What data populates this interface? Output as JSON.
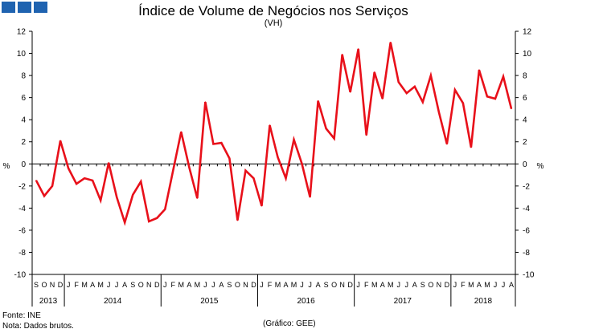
{
  "chart_data": {
    "type": "line",
    "title": "Índice de Volume de Negócios nos Serviços",
    "subtitle": "(VH)",
    "ylabel_left": "%",
    "ylabel_right": "%",
    "ylim": [
      -10,
      12
    ],
    "yticks": [
      -10,
      -8,
      -6,
      -4,
      -2,
      0,
      2,
      4,
      6,
      8,
      10,
      12
    ],
    "grid": false,
    "series": [
      {
        "name": "Índice de Volume de Negócios nos Serviços (VH)",
        "color": "#e8101a",
        "values": [
          -1.5,
          -2.9,
          -2.0,
          2.1,
          -0.4,
          -1.8,
          -1.3,
          -1.5,
          -3.3,
          0.1,
          -3.0,
          -5.3,
          -2.8,
          -1.6,
          -5.2,
          -4.9,
          -4.1,
          -0.6,
          2.9,
          -0.3,
          -3.1,
          5.6,
          1.8,
          1.9,
          0.5,
          -5.1,
          -0.6,
          -1.3,
          -3.8,
          3.5,
          0.6,
          -1.3,
          2.2,
          0.0,
          -3.0,
          5.7,
          3.2,
          2.3,
          9.9,
          6.5,
          10.4,
          2.6,
          8.3,
          5.9,
          11.0,
          7.4,
          6.4,
          7.0,
          5.6,
          8.0,
          4.7,
          1.8,
          6.7,
          5.5,
          1.5,
          8.5,
          6.1,
          5.9,
          7.9,
          5.0
        ]
      }
    ],
    "month_labels": [
      "S",
      "O",
      "N",
      "D",
      "J",
      "F",
      "M",
      "A",
      "M",
      "J",
      "J",
      "A",
      "S",
      "O",
      "N",
      "D",
      "J",
      "F",
      "M",
      "A",
      "M",
      "J",
      "J",
      "A",
      "S",
      "O",
      "N",
      "D",
      "J",
      "F",
      "M",
      "A",
      "M",
      "J",
      "J",
      "A",
      "S",
      "O",
      "N",
      "D",
      "J",
      "F",
      "M",
      "A",
      "M",
      "J",
      "J",
      "A",
      "S",
      "O",
      "N",
      "D",
      "J",
      "F",
      "M",
      "A",
      "M",
      "J",
      "J",
      "A"
    ],
    "years": [
      {
        "label": "2013",
        "months": 4
      },
      {
        "label": "2014",
        "months": 12
      },
      {
        "label": "2015",
        "months": 12
      },
      {
        "label": "2016",
        "months": 12
      },
      {
        "label": "2017",
        "months": 12
      },
      {
        "label": "2018",
        "months": 8
      }
    ]
  },
  "footer": {
    "source": "Fonte: INE",
    "note": "Nota: Dados brutos.",
    "credit": "(Gráfico: GEE)"
  }
}
